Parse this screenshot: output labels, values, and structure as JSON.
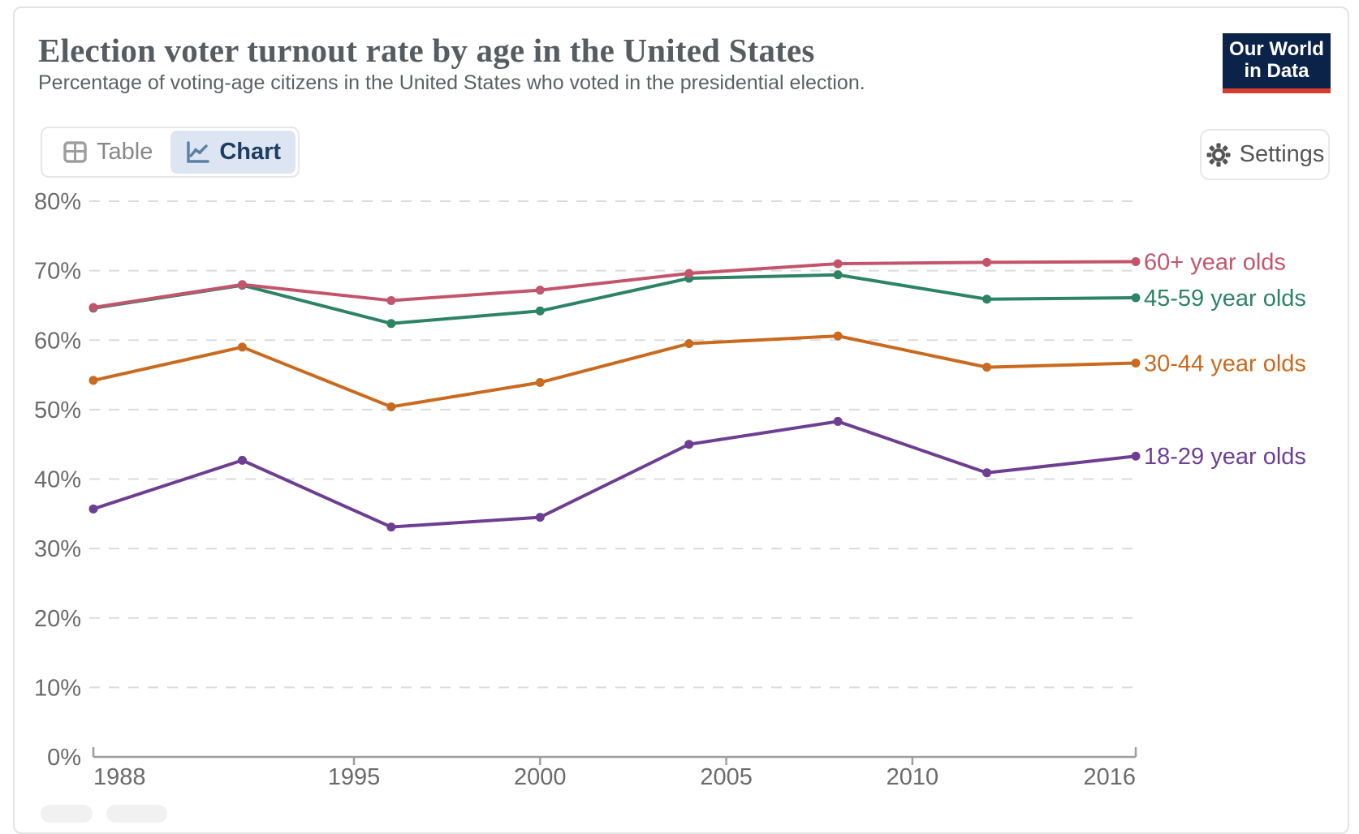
{
  "header": {
    "title": "Election voter turnout rate by age in the United States",
    "subtitle": "Percentage of voting-age citizens in the United States who voted in the presidential election.",
    "logo": {
      "line1": "Our World",
      "line2": "in Data"
    }
  },
  "toolbar": {
    "table_label": "Table",
    "chart_label": "Chart",
    "settings_label": "Settings"
  },
  "colors": {
    "logo_navy": "#0C2349",
    "logo_red": "#D63B2F",
    "selected_tab_bg": "#DCE5F1",
    "selected_tab_text": "#1D3D63",
    "gridline": "#DBDBDB",
    "axis": "#9E9E9E",
    "axis_label": "#6B6B6B"
  },
  "chart_data": {
    "type": "line",
    "x": [
      1988,
      1992,
      1996,
      2000,
      2004,
      2008,
      2012,
      2016
    ],
    "series": [
      {
        "name": "60+ year olds",
        "color": "#C2556B",
        "values": [
          64.7,
          68.0,
          65.7,
          67.2,
          69.6,
          71.0,
          71.2,
          71.3
        ]
      },
      {
        "name": "45-59 year olds",
        "color": "#2C8465",
        "values": [
          64.6,
          67.9,
          62.4,
          64.2,
          68.9,
          69.4,
          65.9,
          66.1
        ]
      },
      {
        "name": "30-44 year olds",
        "color": "#C96A1E",
        "values": [
          54.2,
          59.0,
          50.4,
          53.9,
          59.5,
          60.6,
          56.1,
          56.7
        ]
      },
      {
        "name": "18-29 year olds",
        "color": "#6D3E91",
        "values": [
          35.7,
          42.7,
          33.1,
          34.5,
          45.0,
          48.3,
          40.9,
          43.3
        ]
      }
    ],
    "ylim": [
      0,
      80
    ],
    "ytick_step": 10,
    "ytick_format": "percent",
    "xticks": [
      1988,
      1995,
      2000,
      2005,
      2010,
      2016
    ],
    "grid": true,
    "legend_position": "right"
  }
}
